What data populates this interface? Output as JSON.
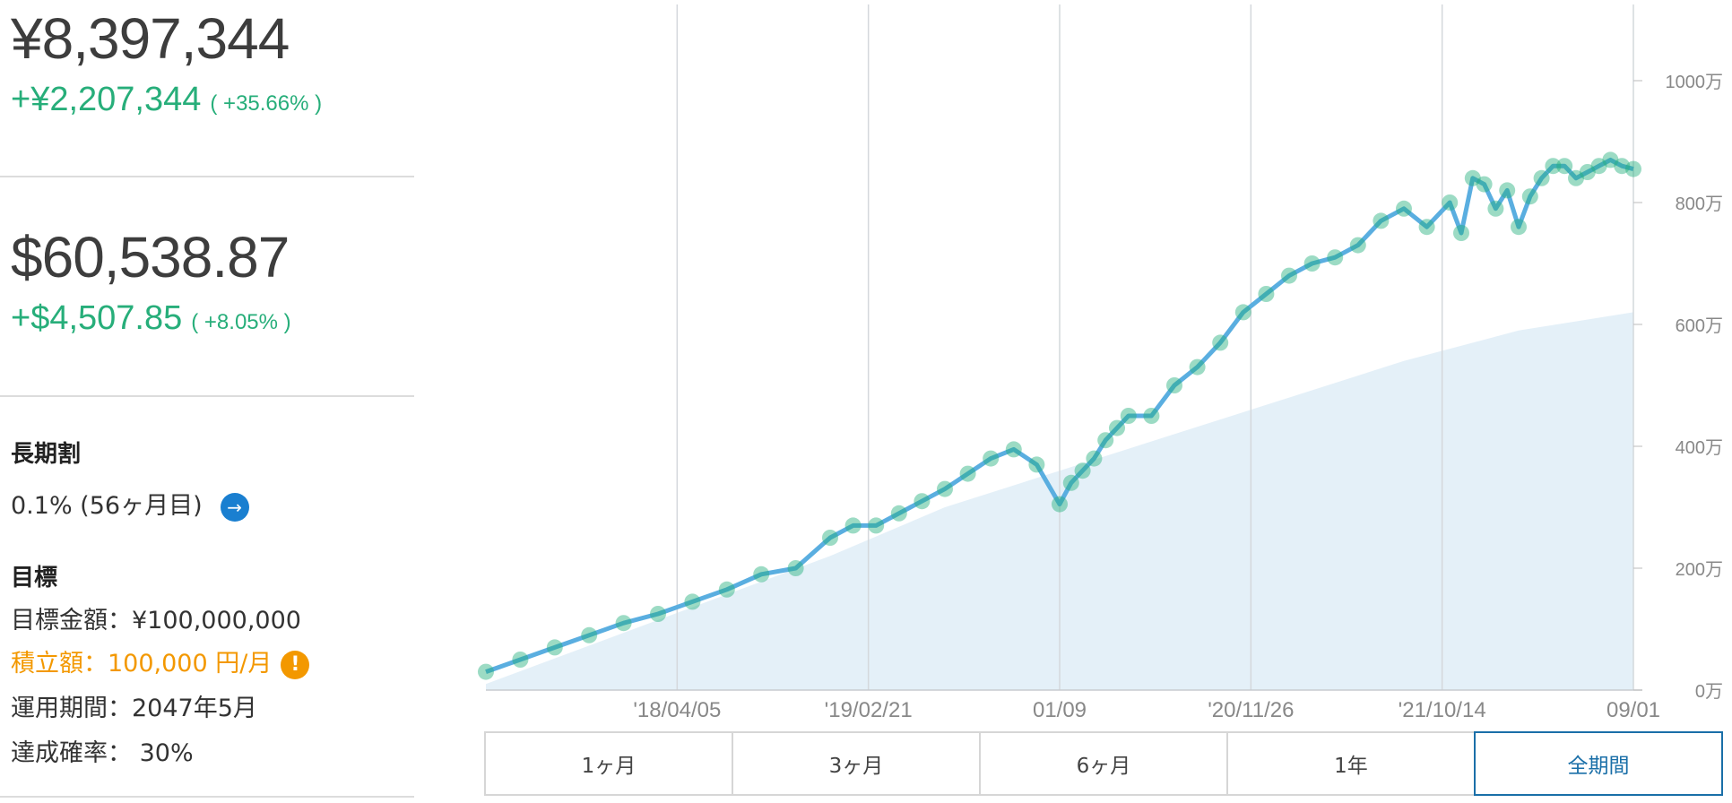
{
  "jpy": {
    "value": "¥8,397,344",
    "gain": "+¥2,207,344",
    "gain_pct": "( +35.66% )"
  },
  "usd": {
    "value": "$60,538.87",
    "gain": "+$4,507.85",
    "gain_pct": "( +8.05% )"
  },
  "long_term": {
    "title": "長期割",
    "value": "0.1% (56ヶ月目)",
    "arrow_icon": "arrow-right-icon"
  },
  "goal": {
    "title": "目標",
    "amount": "目標金額：¥100,000,000",
    "monthly": "積立額：100,000 円/月",
    "warning_icon": "exclamation-icon",
    "period": "運用期間：2047年5月",
    "probability": "達成確率： 30%"
  },
  "tabs": [
    {
      "label": "1ヶ月",
      "active": false
    },
    {
      "label": "3ヶ月",
      "active": false
    },
    {
      "label": "6ヶ月",
      "active": false
    },
    {
      "label": "1年",
      "active": false
    },
    {
      "label": "全期間",
      "active": true
    }
  ],
  "colors": {
    "gain": "#27ae7a",
    "line": "#5aaee0",
    "marker": "#23b07d",
    "area": "#e4f0f8",
    "accent": "#1a6fa8",
    "warning": "#f39800"
  },
  "chart_data": {
    "type": "line",
    "x_ticks": [
      "'18/04/05",
      "'19/02/21",
      "01/09",
      "'20/11/26",
      "'21/10/14",
      "09/01"
    ],
    "y_ticks": [
      "0万",
      "200万",
      "400万",
      "600万",
      "800万",
      "1000万"
    ],
    "ylim": [
      0,
      1000
    ],
    "y_unit": "万",
    "grid": "vertical",
    "series": [
      {
        "style": "line-with-markers",
        "x": [
          0,
          0.03,
          0.06,
          0.09,
          0.12,
          0.15,
          0.18,
          0.21,
          0.24,
          0.27,
          0.3,
          0.32,
          0.34,
          0.36,
          0.38,
          0.4,
          0.42,
          0.44,
          0.46,
          0.48,
          0.5,
          0.51,
          0.52,
          0.53,
          0.54,
          0.55,
          0.56,
          0.58,
          0.6,
          0.62,
          0.64,
          0.66,
          0.68,
          0.7,
          0.72,
          0.74,
          0.76,
          0.78,
          0.8,
          0.82,
          0.84,
          0.85,
          0.86,
          0.87,
          0.88,
          0.89,
          0.9,
          0.91,
          0.92,
          0.93,
          0.94,
          0.95,
          0.96,
          0.97,
          0.98,
          0.99,
          1.0
        ],
        "values": [
          30,
          50,
          70,
          90,
          110,
          125,
          145,
          165,
          190,
          200,
          250,
          270,
          270,
          290,
          310,
          330,
          355,
          380,
          395,
          370,
          305,
          340,
          360,
          380,
          410,
          430,
          450,
          450,
          500,
          530,
          570,
          620,
          650,
          680,
          700,
          710,
          730,
          770,
          790,
          760,
          800,
          750,
          840,
          830,
          790,
          820,
          760,
          810,
          840,
          860,
          860,
          840,
          850,
          860,
          870,
          860,
          855
        ]
      },
      {
        "style": "area",
        "x": [
          0,
          0.1,
          0.2,
          0.3,
          0.4,
          0.5,
          0.6,
          0.7,
          0.8,
          0.9,
          1.0
        ],
        "values": [
          10,
          80,
          150,
          220,
          300,
          360,
          420,
          480,
          540,
          590,
          620
        ]
      }
    ]
  }
}
